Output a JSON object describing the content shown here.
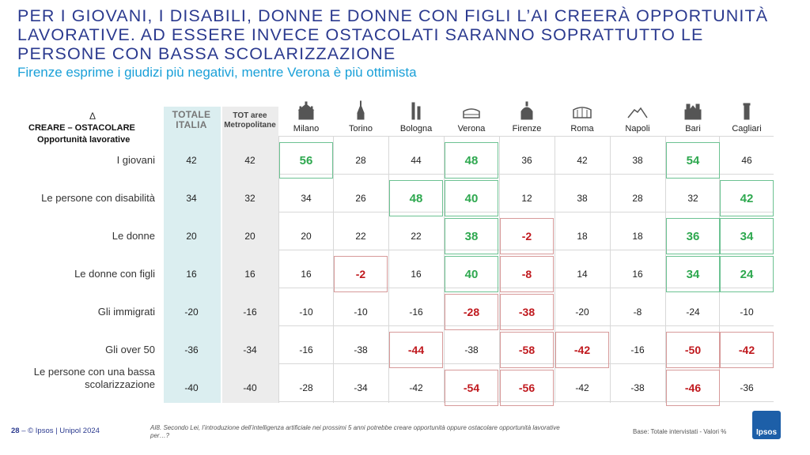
{
  "title": {
    "line1": "PER I GIOVANI, I DISABILI, DONNE E DONNE CON FIGLI L’AI CREERÀ OPPORTUNITÀ",
    "line2": "LAVORATIVE. AD ESSERE INVECE OSTACOLATI SARANNO SOPRATTUTTO LE",
    "line3": "PERSONE CON BASSA SCOLARIZZAZIONE"
  },
  "subtitle": "Firenze esprime i giudizi più negativi, mentre Verona è più ottimista",
  "header": {
    "delta": "Δ",
    "main": "CREARE – OSTACOLARE",
    "sub": "Opportunità lavorative"
  },
  "chart_data": {
    "type": "table",
    "columns": [
      "TOTALE ITALIA",
      "TOT aree Metropolitane",
      "Milano",
      "Torino",
      "Bologna",
      "Verona",
      "Firenze",
      "Roma",
      "Napoli",
      "Bari",
      "Cagliari"
    ],
    "column_lines": [
      [
        "TOTALE",
        "ITALIA"
      ],
      [
        "TOT aree",
        "Metropolitane"
      ]
    ],
    "rows": [
      {
        "label": [
          "I giovani"
        ],
        "values": [
          42,
          42,
          56,
          28,
          44,
          48,
          36,
          42,
          38,
          54,
          46
        ],
        "highlight": [
          "",
          "",
          "pos",
          "",
          "",
          "pos",
          "",
          "",
          "",
          "pos",
          ""
        ]
      },
      {
        "label": [
          "Le persone con disabilità"
        ],
        "values": [
          34,
          32,
          34,
          26,
          48,
          40,
          12,
          38,
          28,
          32,
          42
        ],
        "highlight": [
          "",
          "",
          "",
          "",
          "pos",
          "pos",
          "",
          "",
          "",
          "",
          "pos"
        ]
      },
      {
        "label": [
          "Le donne"
        ],
        "values": [
          20,
          20,
          20,
          22,
          22,
          38,
          -2,
          18,
          18,
          36,
          34
        ],
        "highlight": [
          "",
          "",
          "",
          "",
          "",
          "pos",
          "neg",
          "",
          "",
          "pos",
          "pos"
        ]
      },
      {
        "label": [
          "Le donne con figli"
        ],
        "values": [
          16,
          16,
          16,
          -2,
          16,
          40,
          -8,
          14,
          16,
          34,
          24
        ],
        "highlight": [
          "",
          "",
          "",
          "neg",
          "",
          "pos",
          "neg",
          "",
          "",
          "pos",
          "pos"
        ]
      },
      {
        "label": [
          "Gli immigrati"
        ],
        "values": [
          -20,
          -16,
          -10,
          -10,
          -16,
          -28,
          -38,
          -20,
          -8,
          -24,
          -10
        ],
        "highlight": [
          "",
          "",
          "",
          "",
          "",
          "neg",
          "neg",
          "",
          "",
          "",
          ""
        ]
      },
      {
        "label": [
          "Gli over 50"
        ],
        "values": [
          -36,
          -34,
          -16,
          -38,
          -44,
          -38,
          -58,
          -42,
          -16,
          -50,
          -42
        ],
        "highlight": [
          "",
          "",
          "",
          "",
          "neg",
          "",
          "neg",
          "neg",
          "",
          "neg",
          "neg"
        ]
      },
      {
        "label": [
          "Le persone con una bassa",
          "scolarizzazione"
        ],
        "values": [
          -40,
          -40,
          -28,
          -34,
          -42,
          -54,
          -56,
          -42,
          -38,
          -46,
          -36
        ],
        "highlight": [
          "",
          "",
          "",
          "",
          "",
          "neg",
          "neg",
          "",
          "",
          "neg",
          ""
        ]
      }
    ],
    "colors": {
      "positive": "#2ea84f",
      "negative": "#c0191e"
    }
  },
  "footer": {
    "page": "28",
    "copyright": " – © Ipsos | Unipol 2024",
    "question": "AI8. Secondo Lei, l’introduzione dell’intelligenza artificiale nei prossimi 5 anni potrebbe creare opportunità oppure ostacolare opportunità lavorative per…?",
    "base": "Base: Totale intervistati - Valori %",
    "logo": "Ipsos"
  }
}
